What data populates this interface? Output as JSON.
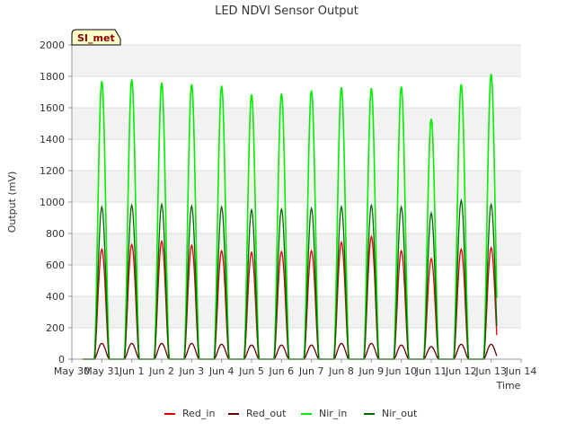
{
  "chart_data": {
    "type": "line",
    "title": "LED NDVI Sensor Output",
    "xlabel": "Time",
    "ylabel": "Output (mV)",
    "site_label": "SI_met",
    "ylim": [
      0,
      2000
    ],
    "yticks": [
      0,
      200,
      400,
      600,
      800,
      1000,
      1200,
      1400,
      1600,
      1800,
      2000
    ],
    "xlim": [
      "2024-05-30",
      "2024-06-14"
    ],
    "xticks": [
      "May 30",
      "May 31",
      "Jun 1",
      "Jun 2",
      "Jun 3",
      "Jun 4",
      "Jun 5",
      "Jun 6",
      "Jun 7",
      "Jun 8",
      "Jun 9",
      "Jun 10",
      "Jun 11",
      "Jun 12",
      "Jun 13",
      "Jun 14"
    ],
    "grid": "horizontal bands",
    "legend_position": "bottom",
    "peak_dates": [
      "May 31",
      "Jun 1",
      "Jun 2",
      "Jun 3",
      "Jun 4",
      "Jun 5",
      "Jun 6",
      "Jun 7",
      "Jun 8",
      "Jun 9",
      "Jun 10",
      "Jun 11",
      "Jun 12",
      "Jun 13"
    ],
    "series": [
      {
        "name": "Red_in",
        "color": "#dd0000",
        "daily_peak_values": [
          700,
          730,
          750,
          725,
          690,
          680,
          685,
          690,
          745,
          780,
          690,
          640,
          700,
          710
        ]
      },
      {
        "name": "Red_out",
        "color": "#660000",
        "daily_peak_values": [
          100,
          100,
          100,
          100,
          95,
          90,
          90,
          90,
          100,
          100,
          90,
          80,
          95,
          95
        ]
      },
      {
        "name": "Nir_in",
        "color": "#00ee00",
        "daily_peak_values": [
          1770,
          1780,
          1760,
          1750,
          1740,
          1685,
          1690,
          1710,
          1730,
          1725,
          1735,
          1530,
          1750,
          1815
        ]
      },
      {
        "name": "Nir_out",
        "color": "#006600",
        "daily_peak_values": [
          970,
          980,
          985,
          975,
          970,
          950,
          955,
          960,
          970,
          980,
          970,
          930,
          1010,
          985
        ]
      }
    ]
  }
}
